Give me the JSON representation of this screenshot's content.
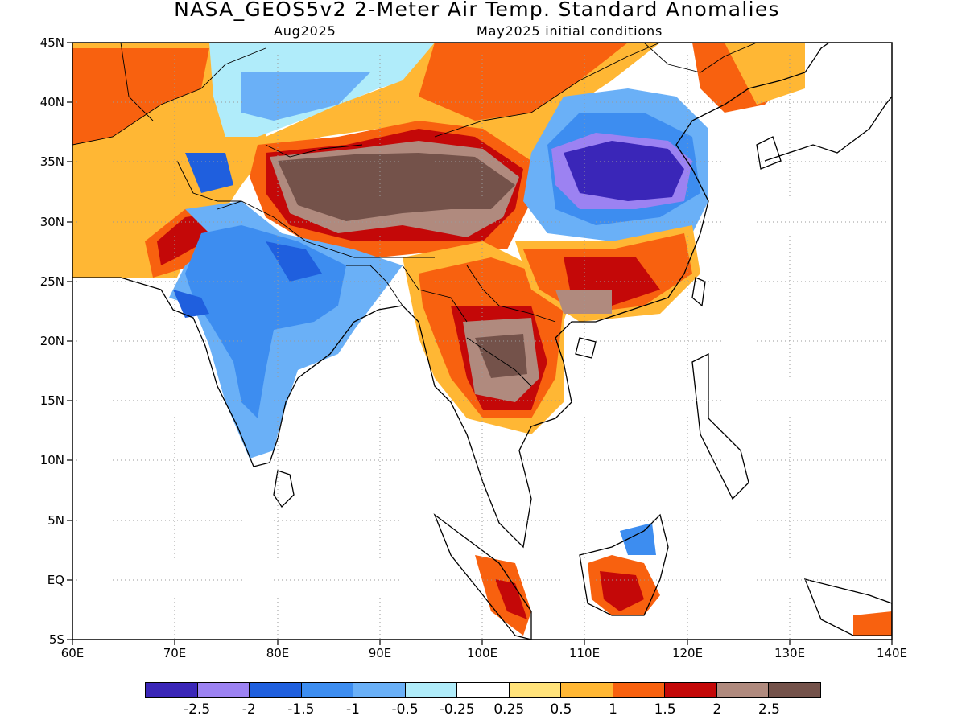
{
  "title": "NASA_GEOS5v2 2-Meter Air Temp. Standard Anomalies",
  "subtitle_left": "Aug2025",
  "subtitle_right": "May2025 initial conditions",
  "map": {
    "lon_range": [
      60,
      140
    ],
    "lat_range": [
      -5,
      45
    ],
    "x_tick_labels": [
      "60E",
      "70E",
      "80E",
      "90E",
      "100E",
      "110E",
      "120E",
      "130E",
      "140E"
    ],
    "y_tick_labels": [
      "45N",
      "40N",
      "35N",
      "30N",
      "25N",
      "20N",
      "15N",
      "10N",
      "5N",
      "EQ",
      "5S"
    ],
    "gridlines": "dotted"
  },
  "colorbar": {
    "colors": [
      "#3a26b8",
      "#9c82f2",
      "#1f5fde",
      "#3d8df0",
      "#6ab0f7",
      "#b0ecfa",
      "#ffffff",
      "#ffe27a",
      "#ffb734",
      "#f8610f",
      "#c40808",
      "#b08a7e",
      "#74524a"
    ],
    "labels": [
      "-2.5",
      "-2",
      "-1.5",
      "-1",
      "-0.5",
      "-0.25",
      "0.25",
      "0.5",
      "1",
      "1.5",
      "2",
      "2.5"
    ]
  }
}
